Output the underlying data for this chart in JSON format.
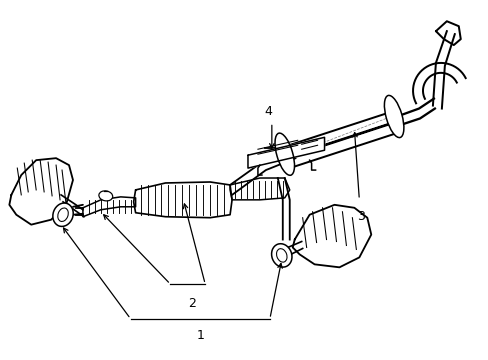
{
  "background_color": "#ffffff",
  "line_color": "#000000",
  "line_width": 1.1,
  "fig_width": 4.89,
  "fig_height": 3.6,
  "dpi": 100,
  "label_fontsize": 9,
  "arrow_color": "#000000",
  "label_1": "1",
  "label_2": "2",
  "label_3": "3",
  "label_4": "4"
}
